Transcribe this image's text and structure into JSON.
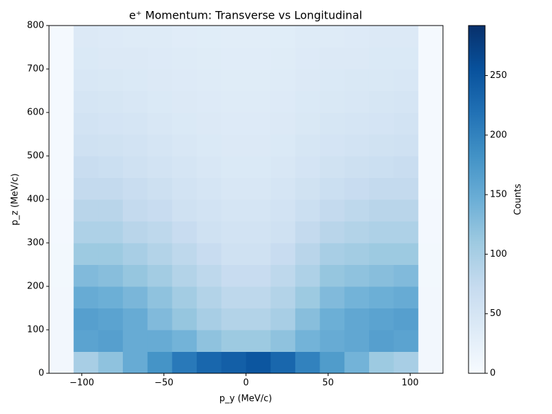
{
  "chart_data": {
    "type": "heatmap",
    "title": "e⁺ Momentum: Transverse vs Longitudinal",
    "xlabel": "p_y (MeV/c)",
    "ylabel": "p_z (MeV/c)",
    "xbins": [
      -120,
      -105,
      -90,
      -75,
      -60,
      -45,
      -30,
      -15,
      0,
      15,
      30,
      45,
      60,
      75,
      90,
      105,
      120
    ],
    "ybins": [
      0,
      50,
      100,
      150,
      200,
      250,
      300,
      350,
      400,
      450,
      500,
      550,
      600,
      650,
      700,
      750,
      800
    ],
    "values": [
      [
        8,
        100,
        120,
        150,
        180,
        210,
        230,
        240,
        250,
        230,
        200,
        170,
        140,
        110,
        100,
        8
      ],
      [
        8,
        160,
        165,
        150,
        150,
        140,
        120,
        110,
        110,
        120,
        140,
        150,
        155,
        165,
        160,
        8
      ],
      [
        8,
        165,
        160,
        150,
        130,
        115,
        100,
        90,
        90,
        100,
        125,
        145,
        155,
        160,
        165,
        8
      ],
      [
        8,
        150,
        145,
        135,
        120,
        105,
        90,
        80,
        80,
        90,
        110,
        130,
        140,
        145,
        150,
        8
      ],
      [
        7,
        130,
        125,
        115,
        105,
        90,
        80,
        70,
        70,
        80,
        95,
        115,
        120,
        125,
        130,
        7
      ],
      [
        7,
        110,
        110,
        100,
        90,
        80,
        70,
        60,
        60,
        70,
        85,
        100,
        105,
        110,
        110,
        7
      ],
      [
        6,
        95,
        95,
        85,
        80,
        70,
        60,
        55,
        55,
        60,
        75,
        85,
        90,
        95,
        95,
        6
      ],
      [
        6,
        85,
        85,
        75,
        70,
        60,
        55,
        50,
        50,
        55,
        65,
        75,
        80,
        85,
        85,
        6
      ],
      [
        5,
        75,
        75,
        68,
        62,
        55,
        50,
        45,
        45,
        50,
        58,
        65,
        70,
        75,
        75,
        5
      ],
      [
        5,
        68,
        65,
        60,
        55,
        50,
        45,
        42,
        42,
        45,
        52,
        58,
        62,
        65,
        68,
        5
      ],
      [
        5,
        60,
        58,
        55,
        50,
        45,
        42,
        40,
        40,
        42,
        48,
        52,
        55,
        58,
        60,
        5
      ],
      [
        5,
        55,
        52,
        50,
        46,
        42,
        40,
        38,
        38,
        40,
        44,
        48,
        50,
        52,
        55,
        5
      ],
      [
        4,
        50,
        48,
        46,
        42,
        40,
        38,
        36,
        36,
        38,
        42,
        44,
        46,
        48,
        50,
        4
      ],
      [
        4,
        46,
        44,
        42,
        40,
        38,
        36,
        35,
        35,
        36,
        40,
        42,
        44,
        44,
        46,
        4
      ],
      [
        4,
        42,
        40,
        40,
        38,
        36,
        35,
        34,
        34,
        35,
        38,
        40,
        40,
        42,
        42,
        4
      ],
      [
        4,
        40,
        38,
        37,
        36,
        34,
        33,
        32,
        32,
        33,
        36,
        37,
        38,
        40,
        40,
        4
      ]
    ],
    "xlim": [
      -120,
      120
    ],
    "ylim": [
      0,
      800
    ],
    "xticks": [
      {
        "value": -100,
        "label": "−100"
      },
      {
        "value": -50,
        "label": "−50"
      },
      0,
      50,
      100
    ],
    "yticks": [
      0,
      100,
      200,
      300,
      400,
      500,
      600,
      700,
      800
    ],
    "colormap": [
      "#f7fbff",
      "#deebf7",
      "#c6dbef",
      "#9ecae1",
      "#6baed6",
      "#4292c6",
      "#2171b5",
      "#08519c",
      "#08306b"
    ],
    "colorbar": {
      "label": "Counts",
      "lim": [
        0,
        292
      ],
      "ticks": [
        0,
        50,
        100,
        150,
        200,
        250
      ]
    }
  }
}
